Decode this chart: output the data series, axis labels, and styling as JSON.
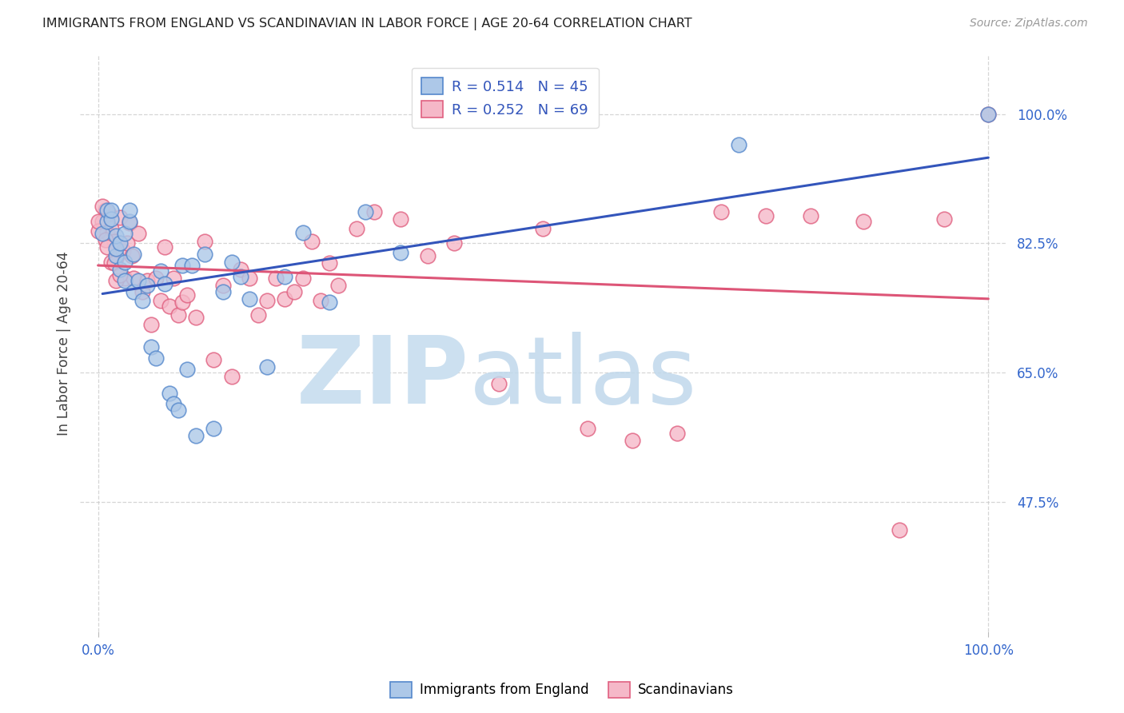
{
  "title": "IMMIGRANTS FROM ENGLAND VS SCANDINAVIAN IN LABOR FORCE | AGE 20-64 CORRELATION CHART",
  "source": "Source: ZipAtlas.com",
  "ylabel": "In Labor Force | Age 20-64",
  "xlim": [
    -0.02,
    1.02
  ],
  "ylim": [
    0.3,
    1.08
  ],
  "yticks": [
    0.475,
    0.65,
    0.825,
    1.0
  ],
  "ytick_labels": [
    "47.5%",
    "65.0%",
    "82.5%",
    "100.0%"
  ],
  "xtick_labels_left": "0.0%",
  "xtick_labels_right": "100.0%",
  "legend_r_england": "0.514",
  "legend_n_england": "45",
  "legend_r_scand": "0.252",
  "legend_n_scand": "69",
  "england_color": "#adc8e8",
  "england_edge_color": "#5588cc",
  "scand_color": "#f5b8c8",
  "scand_edge_color": "#e06080",
  "england_line_color": "#3355bb",
  "scand_line_color": "#dd5577",
  "england_x": [
    0.005,
    0.01,
    0.01,
    0.015,
    0.015,
    0.02,
    0.02,
    0.02,
    0.025,
    0.025,
    0.03,
    0.03,
    0.03,
    0.035,
    0.035,
    0.04,
    0.04,
    0.045,
    0.05,
    0.055,
    0.06,
    0.065,
    0.07,
    0.075,
    0.08,
    0.085,
    0.09,
    0.095,
    0.1,
    0.105,
    0.11,
    0.12,
    0.13,
    0.14,
    0.15,
    0.16,
    0.17,
    0.19,
    0.21,
    0.23,
    0.26,
    0.3,
    0.34,
    0.72,
    1.0
  ],
  "england_y": [
    0.838,
    0.855,
    0.87,
    0.858,
    0.87,
    0.808,
    0.818,
    0.835,
    0.79,
    0.825,
    0.775,
    0.8,
    0.838,
    0.855,
    0.87,
    0.76,
    0.81,
    0.775,
    0.748,
    0.768,
    0.685,
    0.67,
    0.788,
    0.77,
    0.622,
    0.608,
    0.6,
    0.795,
    0.655,
    0.795,
    0.565,
    0.81,
    0.575,
    0.76,
    0.8,
    0.78,
    0.75,
    0.658,
    0.78,
    0.84,
    0.745,
    0.868,
    0.812,
    0.958,
    1.0
  ],
  "scand_x": [
    0.005,
    0.008,
    0.01,
    0.012,
    0.015,
    0.018,
    0.02,
    0.025,
    0.028,
    0.03,
    0.033,
    0.035,
    0.038,
    0.04,
    0.045,
    0.05,
    0.055,
    0.06,
    0.065,
    0.07,
    0.075,
    0.08,
    0.085,
    0.09,
    0.095,
    0.1,
    0.11,
    0.12,
    0.13,
    0.14,
    0.15,
    0.16,
    0.17,
    0.18,
    0.19,
    0.2,
    0.21,
    0.22,
    0.23,
    0.24,
    0.25,
    0.26,
    0.27,
    0.29,
    0.31,
    0.34,
    0.37,
    0.4,
    0.45,
    0.5,
    0.55,
    0.6,
    0.65,
    0.7,
    0.75,
    0.8,
    0.86,
    0.9,
    0.95,
    1.0,
    0.0,
    0.0,
    0.005,
    0.008,
    0.01,
    0.015,
    0.018,
    0.02,
    0.025
  ],
  "scand_y": [
    0.855,
    0.87,
    0.84,
    0.865,
    0.845,
    0.828,
    0.805,
    0.86,
    0.815,
    0.778,
    0.825,
    0.852,
    0.808,
    0.778,
    0.838,
    0.76,
    0.775,
    0.715,
    0.778,
    0.748,
    0.82,
    0.74,
    0.778,
    0.728,
    0.745,
    0.755,
    0.725,
    0.828,
    0.668,
    0.768,
    0.645,
    0.79,
    0.778,
    0.728,
    0.748,
    0.778,
    0.75,
    0.76,
    0.778,
    0.828,
    0.748,
    0.798,
    0.768,
    0.845,
    0.868,
    0.858,
    0.808,
    0.825,
    0.635,
    0.845,
    0.575,
    0.558,
    0.568,
    0.868,
    0.862,
    0.862,
    0.855,
    0.438,
    0.858,
    1.0,
    0.842,
    0.855,
    0.875,
    0.83,
    0.82,
    0.8,
    0.798,
    0.775,
    0.782
  ]
}
